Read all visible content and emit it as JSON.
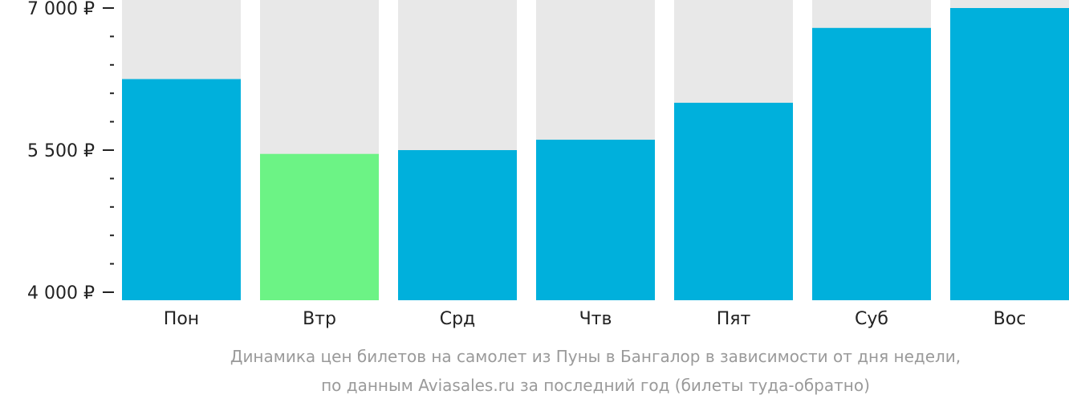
{
  "chart_data": {
    "type": "bar",
    "categories": [
      "Пон",
      "Втр",
      "Срд",
      "Чтв",
      "Пят",
      "Суб",
      "Вос"
    ],
    "values": [
      6250,
      5460,
      5500,
      5610,
      6000,
      6790,
      7000
    ],
    "background_max": 7000,
    "ylim": [
      4000,
      7000
    ],
    "y_ticks_major": [
      4000,
      5500,
      7000
    ],
    "y_tick_labels": [
      "4 000 ₽",
      "5 500 ₽",
      "7 000 ₽"
    ],
    "y_ticks_minor": [
      4300,
      4600,
      4900,
      5200,
      5800,
      6100,
      6400,
      6700
    ],
    "highlight_index": 1,
    "colors": {
      "bar": "#00b0dc",
      "highlight": "#6cf385",
      "background_bar": "#e8e8e8",
      "axis_text": "#222222",
      "caption_text": "#9a9a9a"
    },
    "caption_line1": "Динамика цен билетов на самолет из Пуны в Бангалор в зависимости от дня недели,",
    "caption_line2": "по данным Aviasales.ru за последний год (билеты туда-обратно)"
  }
}
